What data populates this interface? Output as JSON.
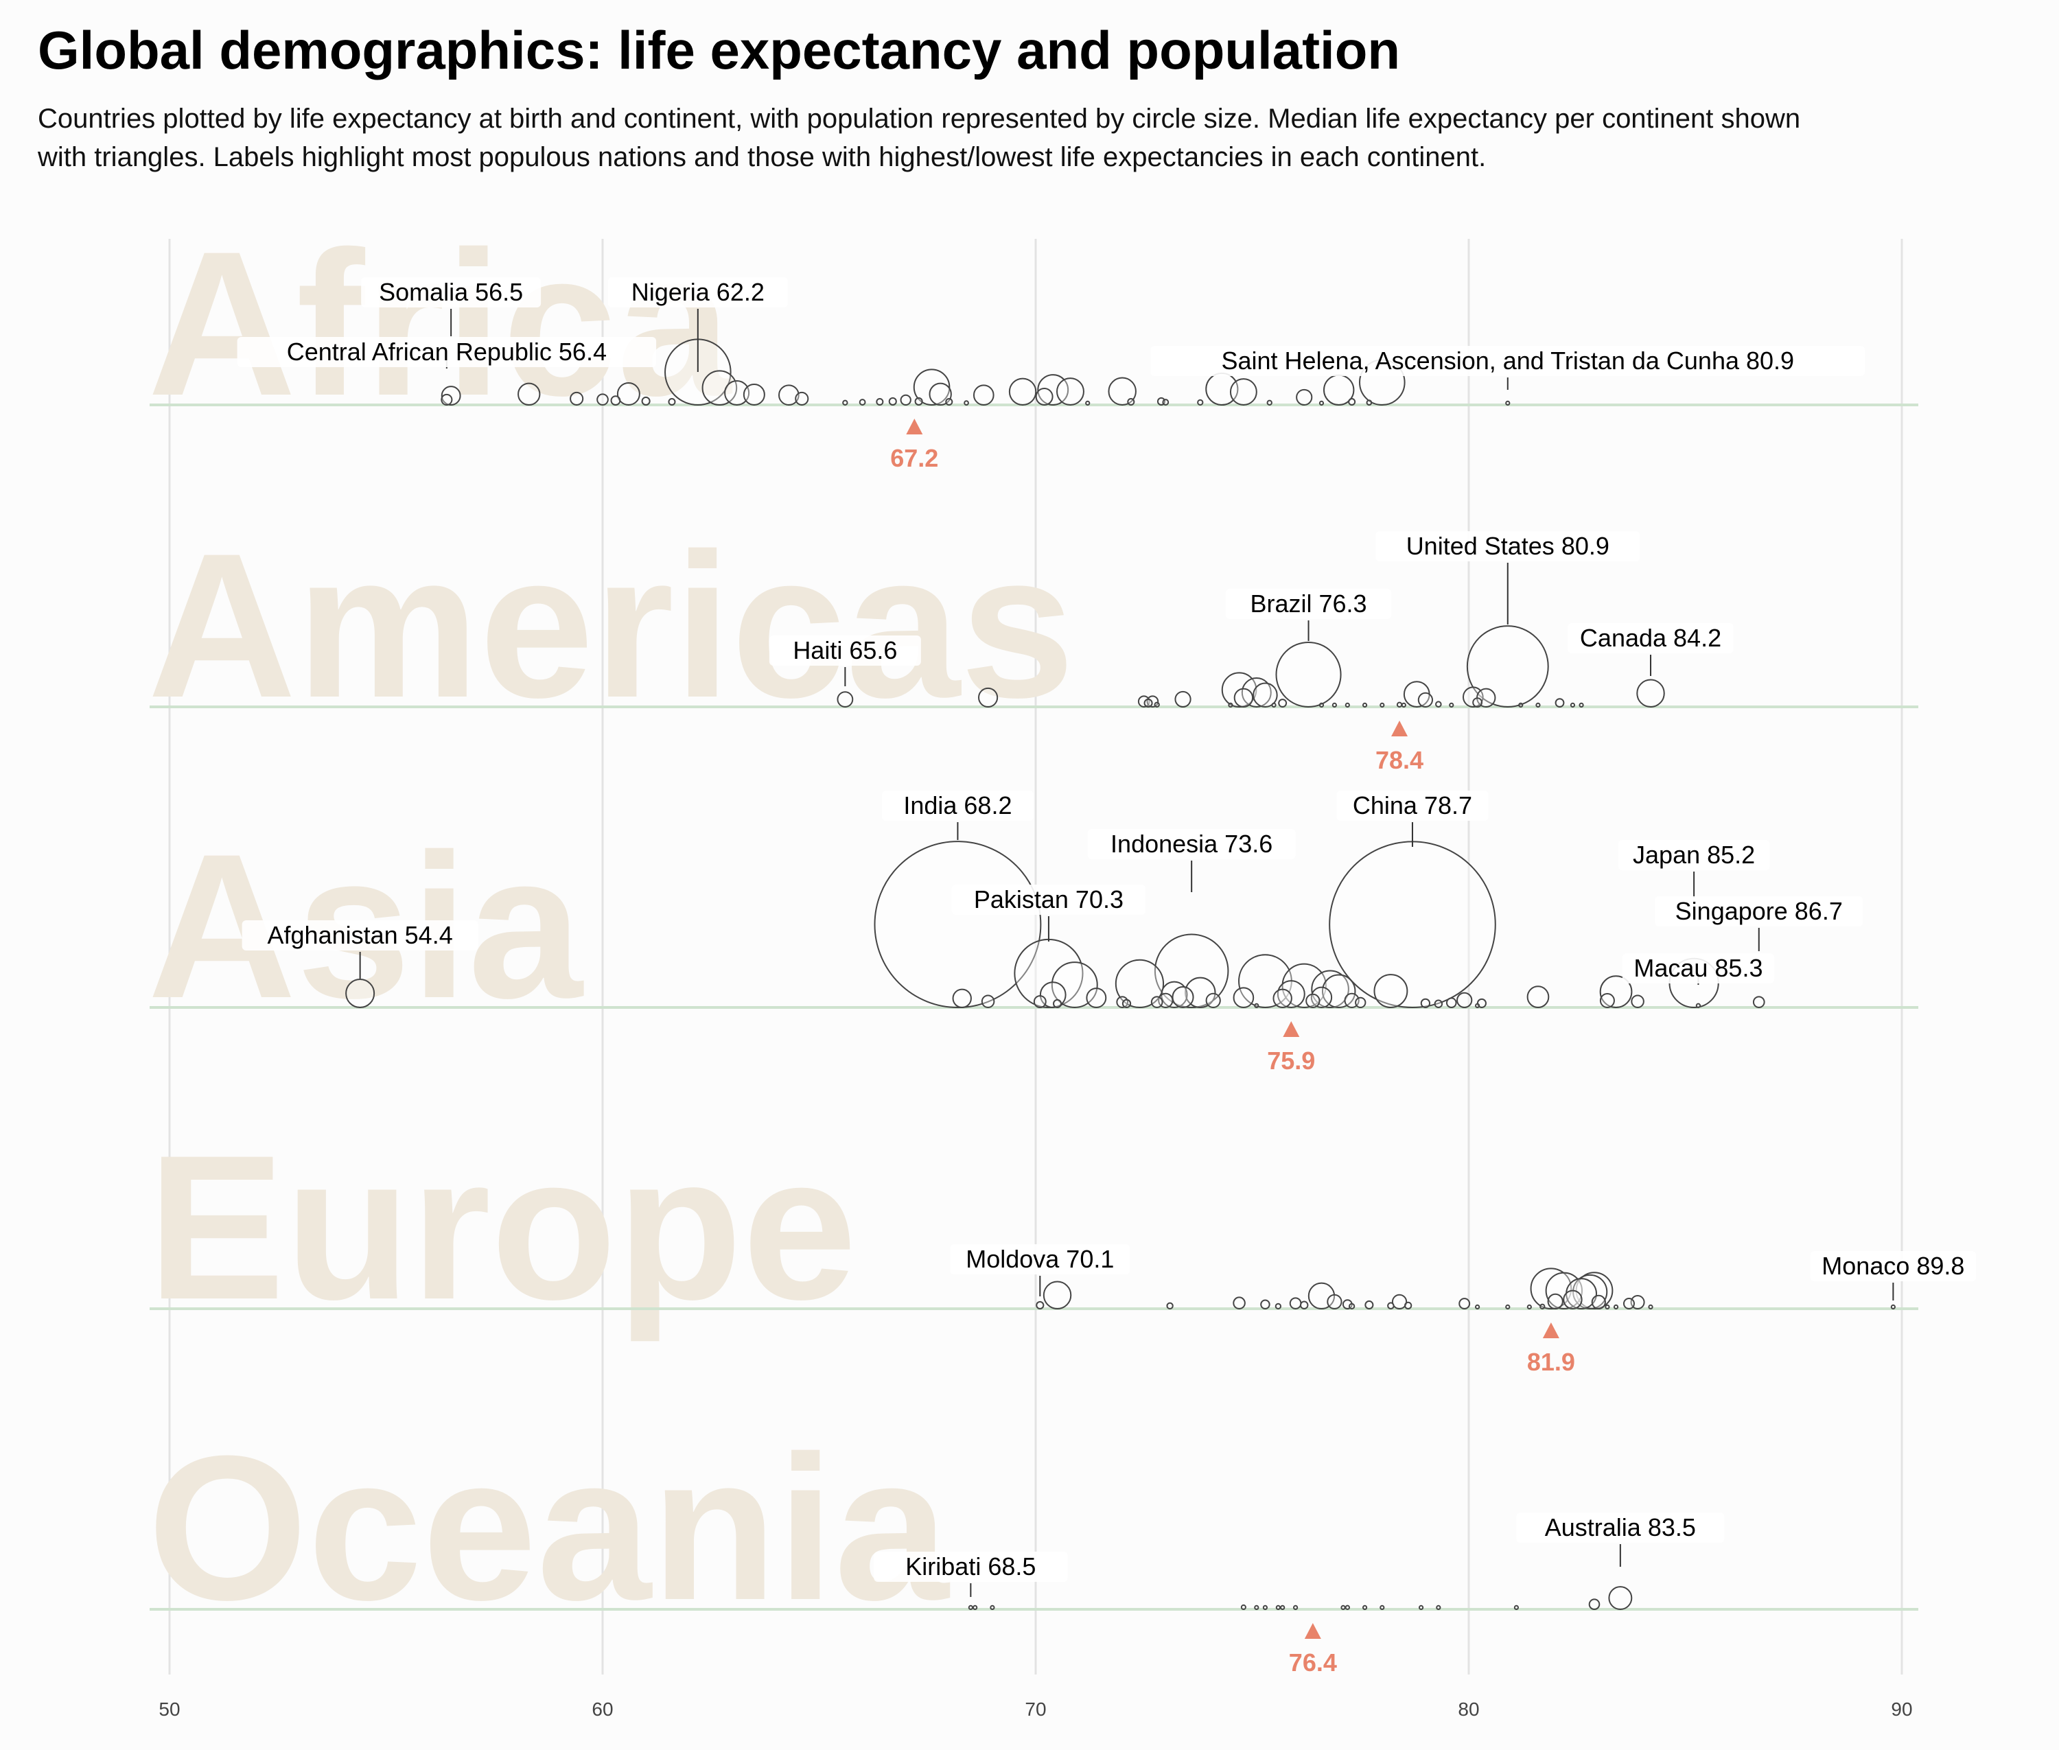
{
  "title": "Global demographics: life expectancy and population",
  "subtitle": "Countries plotted by life expectancy at birth and continent, with population represented by circle size. Median life expectancy per continent shown with triangles. Labels highlight most populous nations and those with highest/lowest life expectancies in each continent.",
  "colors": {
    "background": "#fcfcfc",
    "grid": "#e3e3e3",
    "baseline": "#cfe3cf",
    "continent_text": "#efe8dc",
    "median": "#e8836a",
    "circle_stroke": "#444444"
  },
  "chart_data": {
    "type": "scatter",
    "x_ticks": [
      50,
      60,
      70,
      80,
      90
    ],
    "xlim": [
      49.5,
      90.6
    ],
    "grid": true,
    "panels": [
      {
        "continent": "Africa",
        "median": 67.2,
        "labels": [
          {
            "name": "Somalia",
            "value": 56.5
          },
          {
            "name": "Nigeria",
            "value": 62.2
          },
          {
            "name": "Central African Republic",
            "value": 56.4
          },
          {
            "name": "Saint Helena, Ascension, and Tristan da Cunha",
            "value": 80.9
          }
        ],
        "points": [
          [
            56.4,
            5.6
          ],
          [
            56.5,
            17.6
          ],
          [
            58.3,
            24
          ],
          [
            59.4,
            8
          ],
          [
            60,
            6
          ],
          [
            60.3,
            4
          ],
          [
            60.6,
            25
          ],
          [
            61,
            3
          ],
          [
            61.6,
            2
          ],
          [
            62.2,
            223
          ],
          [
            62.7,
            60
          ],
          [
            63.1,
            30
          ],
          [
            63.5,
            22
          ],
          [
            64.3,
            20
          ],
          [
            64.6,
            8
          ],
          [
            65.6,
            1
          ],
          [
            66,
            1.5
          ],
          [
            66.4,
            2
          ],
          [
            66.7,
            2.5
          ],
          [
            67,
            5
          ],
          [
            67.3,
            2.5
          ],
          [
            67.6,
            65
          ],
          [
            67.8,
            24
          ],
          [
            68,
            2
          ],
          [
            68.4,
            0.8
          ],
          [
            68.8,
            20
          ],
          [
            69.7,
            36
          ],
          [
            70.2,
            14
          ],
          [
            70.4,
            47
          ],
          [
            70.8,
            37
          ],
          [
            71.2,
            0.5
          ],
          [
            72,
            38
          ],
          [
            72.2,
            2
          ],
          [
            72.9,
            2.5
          ],
          [
            73,
            1.5
          ],
          [
            73.8,
            1.3
          ],
          [
            74.3,
            52
          ],
          [
            74.8,
            35
          ],
          [
            75.4,
            1
          ],
          [
            76.2,
            12
          ],
          [
            76.6,
            0.2
          ],
          [
            77,
            46
          ],
          [
            77.3,
            2
          ],
          [
            77.7,
            1.1
          ],
          [
            78,
            105
          ],
          [
            80.9,
            0.005
          ]
        ]
      },
      {
        "continent": "Americas",
        "median": 78.4,
        "labels": [
          {
            "name": "United States",
            "value": 80.9
          },
          {
            "name": "Brazil",
            "value": 76.3
          },
          {
            "name": "Canada",
            "value": 84.2
          },
          {
            "name": "Haiti",
            "value": 65.6
          }
        ],
        "points": [
          [
            65.6,
            11.6
          ],
          [
            68.9,
            18
          ],
          [
            72.5,
            6
          ],
          [
            72.6,
            3
          ],
          [
            72.7,
            6
          ],
          [
            72.8,
            1
          ],
          [
            73.4,
            12
          ],
          [
            74.5,
            0.3
          ],
          [
            74.7,
            60
          ],
          [
            74.8,
            17
          ],
          [
            75.1,
            43
          ],
          [
            75.3,
            29
          ],
          [
            75.5,
            0.1
          ],
          [
            75.7,
            2.9
          ],
          [
            76.3,
            216
          ],
          [
            76.6,
            0.4
          ],
          [
            76.9,
            0.2
          ],
          [
            77.2,
            0.1
          ],
          [
            77.6,
            0.1
          ],
          [
            78,
            0.4
          ],
          [
            78.4,
            1
          ],
          [
            78.5,
            0.3
          ],
          [
            78.8,
            33
          ],
          [
            79,
            10
          ],
          [
            79.3,
            1.4
          ],
          [
            79.6,
            0.3
          ],
          [
            80.1,
            20
          ],
          [
            80.2,
            4
          ],
          [
            80.4,
            17
          ],
          [
            80.9,
            339
          ],
          [
            81.2,
            0.2
          ],
          [
            81.6,
            0.4
          ],
          [
            82.1,
            3.4
          ],
          [
            82.4,
            0.05
          ],
          [
            82.6,
            0.1
          ],
          [
            84.2,
            38
          ]
        ]
      },
      {
        "continent": "Asia",
        "median": 75.9,
        "labels": [
          {
            "name": "India",
            "value": 68.2
          },
          {
            "name": "China",
            "value": 78.7
          },
          {
            "name": "Indonesia",
            "value": 73.6
          },
          {
            "name": "Pakistan",
            "value": 70.3
          },
          {
            "name": "Japan",
            "value": 85.2
          },
          {
            "name": "Singapore",
            "value": 86.7
          },
          {
            "name": "Afghanistan",
            "value": 54.4
          },
          {
            "name": "Macau",
            "value": 85.3
          }
        ],
        "points": [
          [
            54.4,
            41
          ],
          [
            68.2,
            1428
          ],
          [
            68.3,
            17
          ],
          [
            68.9,
            7.5
          ],
          [
            70.1,
            7
          ],
          [
            70.3,
            240
          ],
          [
            70.4,
            33
          ],
          [
            70.5,
            3
          ],
          [
            70.9,
            106
          ],
          [
            71.4,
            19
          ],
          [
            72,
            6
          ],
          [
            72.1,
            3.1
          ],
          [
            72.4,
            117
          ],
          [
            72.8,
            6
          ],
          [
            73,
            10
          ],
          [
            73.2,
            34
          ],
          [
            73.4,
            22
          ],
          [
            73.6,
            277
          ],
          [
            73.8,
            46
          ],
          [
            74.1,
            10
          ],
          [
            74.8,
            20
          ],
          [
            75.1,
            0.5
          ],
          [
            75.3,
            144
          ],
          [
            75.7,
            17
          ],
          [
            75.9,
            37
          ],
          [
            76.2,
            98
          ],
          [
            76.4,
            9.1
          ],
          [
            76.6,
            21
          ],
          [
            76.8,
            70
          ],
          [
            77,
            55
          ],
          [
            77.3,
            10
          ],
          [
            77.5,
            5
          ],
          [
            78.2,
            56
          ],
          [
            78.7,
            1425
          ],
          [
            79,
            3.7
          ],
          [
            79.3,
            2.7
          ],
          [
            79.6,
            4.5
          ],
          [
            79.9,
            11
          ],
          [
            80.2,
            0.5
          ],
          [
            80.3,
            3.6
          ],
          [
            81.6,
            23
          ],
          [
            83.2,
            9.8
          ],
          [
            83.4,
            51
          ],
          [
            83.9,
            7.5
          ],
          [
            85.2,
            124
          ],
          [
            85.3,
            0.7
          ],
          [
            86.7,
            6
          ]
        ]
      },
      {
        "continent": "Europe",
        "median": 81.9,
        "labels": [
          {
            "name": "Moldova",
            "value": 70.1
          },
          {
            "name": "Monaco",
            "value": 89.8
          }
        ],
        "points": [
          [
            70.1,
            2.5
          ],
          [
            70.5,
            38
          ],
          [
            73.1,
            1.7
          ],
          [
            74.7,
            6.7
          ],
          [
            75.3,
            3.8
          ],
          [
            75.6,
            1.3
          ],
          [
            76,
            6
          ],
          [
            76.2,
            2.7
          ],
          [
            76.6,
            34
          ],
          [
            76.9,
            10
          ],
          [
            77.2,
            4
          ],
          [
            77.3,
            1.3
          ],
          [
            77.7,
            3
          ],
          [
            78.2,
            1.8
          ],
          [
            78.4,
            10
          ],
          [
            78.6,
            2.1
          ],
          [
            79.9,
            5.4
          ],
          [
            80.2,
            0.6
          ],
          [
            80.9,
            0.03
          ],
          [
            81.4,
            0.1
          ],
          [
            81.7,
            1
          ],
          [
            81.9,
            84
          ],
          [
            82,
            11
          ],
          [
            82.2,
            67
          ],
          [
            82.4,
            17
          ],
          [
            82.6,
            47
          ],
          [
            82.8,
            59
          ],
          [
            82.9,
            68
          ],
          [
            83,
            9
          ],
          [
            83.2,
            0.5
          ],
          [
            83.4,
            0.4
          ],
          [
            83.7,
            5.5
          ],
          [
            83.9,
            8.8
          ],
          [
            84.2,
            0.04
          ],
          [
            89.8,
            0.04
          ]
        ]
      },
      {
        "continent": "Oceania",
        "median": 76.4,
        "labels": [
          {
            "name": "Australia",
            "value": 83.5
          },
          {
            "name": "Kiribati",
            "value": 68.5
          }
        ],
        "points": [
          [
            68.5,
            0.13
          ],
          [
            68.6,
            0.05
          ],
          [
            69,
            0.1
          ],
          [
            74.8,
            0.9
          ],
          [
            75.1,
            0.6
          ],
          [
            75.3,
            0.05
          ],
          [
            75.6,
            0.3
          ],
          [
            75.7,
            0.2
          ],
          [
            76,
            0.05
          ],
          [
            77.1,
            0.4
          ],
          [
            77.2,
            0.7
          ],
          [
            77.6,
            0.05
          ],
          [
            78,
            0.1
          ],
          [
            78.9,
            0.3
          ],
          [
            79.3,
            0.4
          ],
          [
            81.1,
            0.05
          ],
          [
            82.9,
            5.2
          ],
          [
            83.5,
            26.4
          ]
        ]
      }
    ]
  }
}
